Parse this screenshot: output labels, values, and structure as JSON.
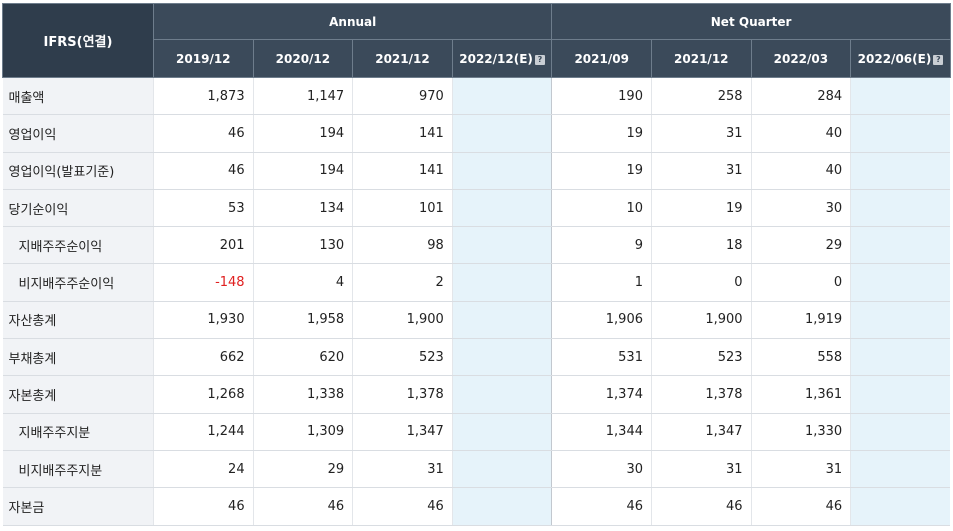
{
  "table": {
    "corner_label": "IFRS(연결)",
    "group_annual": "Annual",
    "group_quarter": "Net Quarter",
    "annual_periods": [
      "2019/12",
      "2020/12",
      "2021/12",
      "2022/12(E)"
    ],
    "quarter_periods": [
      "2021/09",
      "2021/12",
      "2022/03",
      "2022/06(E)"
    ],
    "estimate_help_icon": "question-mark-icon",
    "rows": [
      {
        "label": "매출액",
        "sub": false,
        "annual": [
          "1,873",
          "1,147",
          "970",
          ""
        ],
        "quarter": [
          "190",
          "258",
          "284",
          ""
        ]
      },
      {
        "label": "영업이익",
        "sub": false,
        "annual": [
          "46",
          "194",
          "141",
          ""
        ],
        "quarter": [
          "19",
          "31",
          "40",
          ""
        ]
      },
      {
        "label": "영업이익(발표기준)",
        "sub": false,
        "annual": [
          "46",
          "194",
          "141",
          ""
        ],
        "quarter": [
          "19",
          "31",
          "40",
          ""
        ]
      },
      {
        "label": "당기순이익",
        "sub": false,
        "annual": [
          "53",
          "134",
          "101",
          ""
        ],
        "quarter": [
          "10",
          "19",
          "30",
          ""
        ]
      },
      {
        "label": "지배주주순이익",
        "sub": true,
        "annual": [
          "201",
          "130",
          "98",
          ""
        ],
        "quarter": [
          "9",
          "18",
          "29",
          ""
        ]
      },
      {
        "label": "비지배주주순이익",
        "sub": true,
        "annual": [
          "-148",
          "4",
          "2",
          ""
        ],
        "quarter": [
          "1",
          "0",
          "0",
          ""
        ]
      },
      {
        "label": "자산총계",
        "sub": false,
        "annual": [
          "1,930",
          "1,958",
          "1,900",
          ""
        ],
        "quarter": [
          "1,906",
          "1,900",
          "1,919",
          ""
        ]
      },
      {
        "label": "부채총계",
        "sub": false,
        "annual": [
          "662",
          "620",
          "523",
          ""
        ],
        "quarter": [
          "531",
          "523",
          "558",
          ""
        ]
      },
      {
        "label": "자본총계",
        "sub": false,
        "annual": [
          "1,268",
          "1,338",
          "1,378",
          ""
        ],
        "quarter": [
          "1,374",
          "1,378",
          "1,361",
          ""
        ]
      },
      {
        "label": "지배주주지분",
        "sub": true,
        "annual": [
          "1,244",
          "1,309",
          "1,347",
          ""
        ],
        "quarter": [
          "1,344",
          "1,347",
          "1,330",
          ""
        ]
      },
      {
        "label": "비지배주주지분",
        "sub": true,
        "annual": [
          "24",
          "29",
          "31",
          ""
        ],
        "quarter": [
          "30",
          "31",
          "31",
          ""
        ]
      },
      {
        "label": "자본금",
        "sub": false,
        "annual": [
          "46",
          "46",
          "46",
          ""
        ],
        "quarter": [
          "46",
          "46",
          "46",
          ""
        ]
      }
    ]
  },
  "colors": {
    "header_bg": "#3b4a5a",
    "label_bg": "#f1f3f6",
    "estimate_bg": "#e6f3fa",
    "negative_text": "#e02020"
  }
}
